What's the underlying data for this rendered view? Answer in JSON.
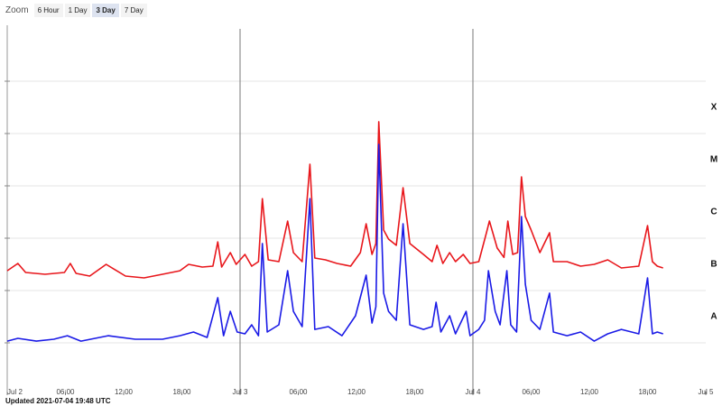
{
  "zoom": {
    "label": "Zoom",
    "options": [
      "6 Hour",
      "1 Day",
      "3 Day",
      "7 Day"
    ],
    "selected": 2
  },
  "footer": "Updated 2021-07-04 19:48 UTC",
  "chart_data": {
    "type": "line",
    "log_y": true,
    "xlim": [
      0,
      72
    ],
    "xticks": [
      {
        "value": 0,
        "label": "Jul 2"
      },
      {
        "value": 6,
        "label": "06:00"
      },
      {
        "value": 12,
        "label": "12:00"
      },
      {
        "value": 18,
        "label": "18:00"
      },
      {
        "value": 24,
        "label": "Jul 3"
      },
      {
        "value": 30,
        "label": "06:00"
      },
      {
        "value": 36,
        "label": "12:00"
      },
      {
        "value": 42,
        "label": "18:00"
      },
      {
        "value": 48,
        "label": "Jul 4"
      },
      {
        "value": 54,
        "label": "06:00"
      },
      {
        "value": 60,
        "label": "12:00"
      },
      {
        "value": 66,
        "label": "18:00"
      },
      {
        "value": 72,
        "label": "Jul 5"
      }
    ],
    "ylim": [
      1e-09,
      0.01
    ],
    "yticks": [
      {
        "value": 1e-08,
        "label": "A"
      },
      {
        "value": 1e-07,
        "label": "B"
      },
      {
        "value": 1e-06,
        "label": "C"
      },
      {
        "value": 1e-05,
        "label": "M"
      },
      {
        "value": 0.0001,
        "label": "X"
      }
    ],
    "grid_lines": [
      1e-08,
      1e-07,
      1e-06,
      1e-05,
      0.0001,
      0.001
    ],
    "series": [
      {
        "color": "#e8161b",
        "x": [
          0,
          1.1,
          1.9,
          3.9,
          5.9,
          6.5,
          7.1,
          8.5,
          10.2,
          12.2,
          14.1,
          16.0,
          17.8,
          18.7,
          20.1,
          21.2,
          21.7,
          22.1,
          23.0,
          23.6,
          24.5,
          25.2,
          25.9,
          26.3,
          26.9,
          28.0,
          28.9,
          29.5,
          30.4,
          31.2,
          31.7,
          32.8,
          34.0,
          35.4,
          36.4,
          37.0,
          37.6,
          38.0,
          38.3,
          38.8,
          39.3,
          40.1,
          40.8,
          41.5,
          42.9,
          43.8,
          44.3,
          44.9,
          45.6,
          46.2,
          47.0,
          47.7,
          48.6,
          49.4,
          49.7,
          50.5,
          51.2,
          51.6,
          52.1,
          52.6,
          53.0,
          53.4,
          54.0,
          54.9,
          55.9,
          56.3,
          57.7,
          59.1,
          60.5,
          61.9,
          63.3,
          65.1,
          66.0,
          66.5,
          67.0,
          67.6
        ],
        "values": [
          2.39e-07,
          3.29e-07,
          2.21e-07,
          2.04e-07,
          2.21e-07,
          3.29e-07,
          2.13e-07,
          1.89e-07,
          3.16e-07,
          1.89e-07,
          1.74e-07,
          2.04e-07,
          2.39e-07,
          3.16e-07,
          2.81e-07,
          2.92e-07,
          8.5e-07,
          2.81e-07,
          5.3e-07,
          3.16e-07,
          4.9e-07,
          2.92e-07,
          3.56e-07,
          5.7e-06,
          3.86e-07,
          3.56e-07,
          2.13e-06,
          5.3e-07,
          3.56e-07,
          2.59e-05,
          4.18e-07,
          3.86e-07,
          3.29e-07,
          2.92e-07,
          5.3e-07,
          1.89e-06,
          4.9e-07,
          7.9e-07,
          0.000168,
          1.43e-06,
          9.6e-07,
          7.3e-07,
          9.2e-06,
          7.9e-07,
          4.9e-07,
          3.56e-07,
          7.3e-07,
          3.29e-07,
          5.3e-07,
          3.56e-07,
          4.9e-07,
          3.29e-07,
          3.56e-07,
          1.27e-06,
          2.13e-06,
          6.5e-07,
          4.3e-07,
          2.13e-06,
          4.9e-07,
          5.3e-07,
          1.49e-05,
          2.59e-06,
          1.43e-06,
          5.3e-07,
          1.27e-06,
          3.56e-07,
          3.56e-07,
          2.92e-07,
          3.16e-07,
          3.86e-07,
          2.7e-07,
          2.92e-07,
          1.74e-06,
          3.56e-07,
          2.92e-07,
          2.7e-07
        ]
      },
      {
        "color": "#1a1ae6",
        "x": [
          0,
          1.1,
          3.0,
          4.8,
          6.2,
          7.6,
          10.4,
          13.2,
          16.0,
          17.8,
          19.2,
          20.6,
          21.7,
          22.3,
          23.0,
          23.7,
          24.5,
          25.2,
          25.9,
          26.3,
          26.8,
          28.0,
          28.9,
          29.5,
          30.4,
          31.2,
          31.7,
          33.1,
          34.5,
          35.9,
          37.0,
          37.6,
          38.0,
          38.3,
          38.8,
          39.3,
          40.1,
          40.8,
          41.5,
          42.9,
          43.8,
          44.2,
          44.7,
          45.6,
          46.2,
          47.3,
          47.7,
          48.6,
          49.2,
          49.6,
          50.3,
          50.8,
          51.5,
          51.9,
          52.5,
          53.0,
          53.4,
          54.0,
          54.9,
          55.9,
          56.3,
          57.7,
          59.1,
          60.5,
          61.9,
          63.3,
          65.1,
          66.0,
          66.5,
          67.0,
          67.6
        ],
        "values": [
          1.08e-08,
          1.22e-08,
          1.08e-08,
          1.17e-08,
          1.37e-08,
          1.08e-08,
          1.37e-08,
          1.17e-08,
          1.17e-08,
          1.37e-08,
          1.61e-08,
          1.27e-08,
          7.3e-08,
          1.37e-08,
          4e-08,
          1.61e-08,
          1.49e-08,
          2.21e-08,
          1.37e-08,
          7.9e-07,
          1.61e-08,
          2.21e-08,
          2.39e-07,
          4e-08,
          2.04e-08,
          5.7e-06,
          1.81e-08,
          2.04e-08,
          1.37e-08,
          3.29e-08,
          1.96e-07,
          2.39e-08,
          4.9e-08,
          6.2e-05,
          8.9e-08,
          4e-08,
          2.7e-08,
          1.89e-06,
          2.21e-08,
          1.81e-08,
          2.04e-08,
          5.97e-08,
          1.61e-08,
          3.29e-08,
          1.49e-08,
          4e-08,
          1.37e-08,
          1.81e-08,
          2.7e-08,
          2.39e-07,
          4e-08,
          2.21e-08,
          2.39e-07,
          2.21e-08,
          1.61e-08,
          2.59e-06,
          1.32e-07,
          2.7e-08,
          1.81e-08,
          8.9e-08,
          1.61e-08,
          1.37e-08,
          1.61e-08,
          1.08e-08,
          1.49e-08,
          1.81e-08,
          1.49e-08,
          1.74e-07,
          1.49e-08,
          1.61e-08,
          1.49e-08
        ]
      }
    ]
  }
}
